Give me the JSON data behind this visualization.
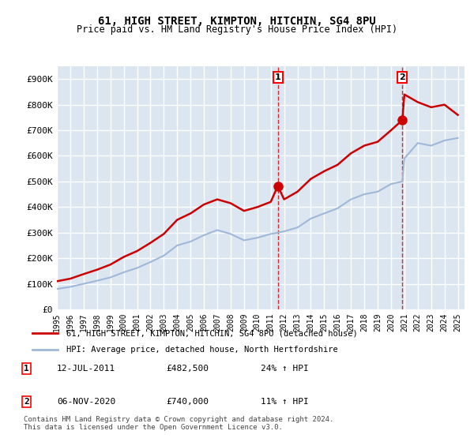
{
  "title1": "61, HIGH STREET, KIMPTON, HITCHIN, SG4 8PU",
  "title2": "Price paid vs. HM Land Registry's House Price Index (HPI)",
  "ylabel_ticks": [
    "£0",
    "£100K",
    "£200K",
    "£300K",
    "£400K",
    "£500K",
    "£600K",
    "£700K",
    "£800K",
    "£900K"
  ],
  "ytick_values": [
    0,
    100000,
    200000,
    300000,
    400000,
    500000,
    600000,
    700000,
    800000,
    900000
  ],
  "ylim": [
    0,
    950000
  ],
  "xlim_start": 1995.0,
  "xlim_end": 2025.5,
  "bg_color": "#dce6f1",
  "plot_bg_color": "#dce6f1",
  "grid_color": "#ffffff",
  "line1_color": "#cc0000",
  "line2_color": "#a0b8d8",
  "marker1_color": "#cc0000",
  "transaction1_date": 2011.53,
  "transaction1_price": 482500,
  "transaction1_label": "1",
  "transaction2_date": 2020.85,
  "transaction2_price": 740000,
  "transaction2_label": "2",
  "legend1_text": "61, HIGH STREET, KIMPTON, HITCHIN, SG4 8PU (detached house)",
  "legend2_text": "HPI: Average price, detached house, North Hertfordshire",
  "footnote1_label": "1",
  "footnote1_date": "12-JUL-2011",
  "footnote1_price": "£482,500",
  "footnote1_hpi": "24% ↑ HPI",
  "footnote2_label": "2",
  "footnote2_date": "06-NOV-2020",
  "footnote2_price": "£740,000",
  "footnote2_hpi": "11% ↑ HPI",
  "footnote_copyright": "Contains HM Land Registry data © Crown copyright and database right 2024.\nThis data is licensed under the Open Government Licence v3.0.",
  "hpi_years": [
    1995,
    1996,
    1997,
    1998,
    1999,
    2000,
    2001,
    2002,
    2003,
    2004,
    2005,
    2006,
    2007,
    2008,
    2009,
    2010,
    2011,
    2011.53,
    2012,
    2013,
    2014,
    2015,
    2016,
    2017,
    2018,
    2019,
    2020,
    2020.85,
    2021,
    2022,
    2023,
    2024,
    2025
  ],
  "hpi_values": [
    80000,
    88000,
    100000,
    112000,
    125000,
    145000,
    162000,
    185000,
    210000,
    250000,
    265000,
    290000,
    310000,
    295000,
    270000,
    280000,
    295000,
    300000,
    305000,
    320000,
    355000,
    375000,
    395000,
    430000,
    450000,
    460000,
    490000,
    500000,
    590000,
    650000,
    640000,
    660000,
    670000
  ],
  "price_years": [
    1995,
    1996,
    1997,
    1998,
    1999,
    2000,
    2001,
    2002,
    2003,
    2004,
    2005,
    2006,
    2007,
    2008,
    2009,
    2010,
    2011,
    2011.53,
    2012,
    2013,
    2014,
    2015,
    2016,
    2017,
    2018,
    2019,
    2020,
    2020.85,
    2021,
    2022,
    2023,
    2024,
    2025
  ],
  "price_values": [
    110000,
    120000,
    138000,
    155000,
    175000,
    205000,
    228000,
    260000,
    295000,
    350000,
    375000,
    410000,
    430000,
    415000,
    385000,
    400000,
    420000,
    482500,
    430000,
    460000,
    510000,
    540000,
    565000,
    610000,
    640000,
    655000,
    700000,
    740000,
    840000,
    810000,
    790000,
    800000,
    760000
  ],
  "xtick_years": [
    1995,
    1996,
    1997,
    1998,
    1999,
    2000,
    2001,
    2002,
    2003,
    2004,
    2005,
    2006,
    2007,
    2008,
    2009,
    2010,
    2011,
    2012,
    2013,
    2014,
    2015,
    2016,
    2017,
    2018,
    2019,
    2020,
    2021,
    2022,
    2023,
    2024,
    2025
  ]
}
